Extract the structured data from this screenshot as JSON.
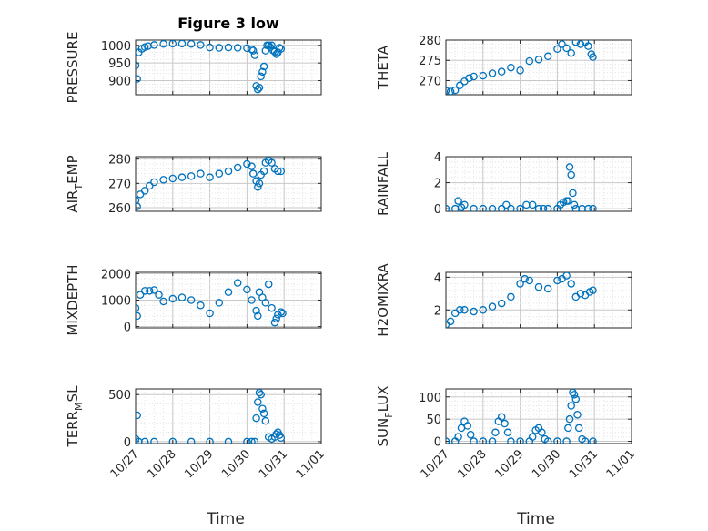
{
  "figure": {
    "title": "Figure 3 low"
  },
  "chart_data": [
    {
      "type": "scatter",
      "id": "pressure",
      "ylabel": "PRESSURE",
      "ylabel_sub": "",
      "ylim": [
        860,
        1015
      ],
      "yticks": [
        900,
        950,
        1000
      ],
      "xlabel": "",
      "xticks": [],
      "x": [
        "10/27 00:00",
        "10/27 01:00",
        "10/27 02:00",
        "10/27 04:00",
        "10/27 06:00",
        "10/27 08:00",
        "10/27 12:00",
        "10/27 18:00",
        "10/28 00:00",
        "10/28 06:00",
        "10/28 12:00",
        "10/28 18:00",
        "10/29 00:00",
        "10/29 06:00",
        "10/29 12:00",
        "10/29 18:00",
        "10/30 00:00",
        "10/30 03:00",
        "10/30 04:00",
        "10/30 05:00",
        "10/30 06:00",
        "10/30 07:00",
        "10/30 08:00",
        "10/30 09:00",
        "10/30 10:00",
        "10/30 11:00",
        "10/30 12:00",
        "10/30 13:00",
        "10/30 14:00",
        "10/30 15:00",
        "10/30 16:00",
        "10/30 17:00",
        "10/30 18:00",
        "10/30 19:00",
        "10/30 20:00",
        "10/30 21:00",
        "10/30 22:00"
      ],
      "y": [
        943,
        905,
        980,
        990,
        995,
        998,
        1001,
        1004,
        1005,
        1005,
        1004,
        1001,
        994,
        993,
        994,
        993,
        992,
        989,
        985,
        972,
        885,
        875,
        880,
        912,
        925,
        940,
        985,
        1000,
        1000,
        995,
        1000,
        985,
        982,
        975,
        980,
        993,
        990
      ]
    },
    {
      "type": "scatter",
      "id": "theta",
      "ylabel": "THETA",
      "ylabel_sub": "",
      "ylim": [
        266.5,
        280
      ],
      "yticks": [
        270,
        275,
        280
      ],
      "xlabel": "",
      "xticks": [],
      "x": [
        "10/27 00:00",
        "10/27 03:00",
        "10/27 06:00",
        "10/27 09:00",
        "10/27 12:00",
        "10/27 15:00",
        "10/27 18:00",
        "10/28 00:00",
        "10/28 06:00",
        "10/28 12:00",
        "10/28 18:00",
        "10/29 00:00",
        "10/29 06:00",
        "10/29 12:00",
        "10/29 18:00",
        "10/30 00:00",
        "10/30 03:00",
        "10/30 06:00",
        "10/30 09:00",
        "10/30 12:00",
        "10/30 15:00",
        "10/30 18:00",
        "10/30 20:00",
        "10/30 22:00",
        "10/30 23:00"
      ],
      "y": [
        267.5,
        267.3,
        267.6,
        268.8,
        269.8,
        270.6,
        271.0,
        271.2,
        271.8,
        272.2,
        273.2,
        272.5,
        274.8,
        275.2,
        276.0,
        277.8,
        279.0,
        278.0,
        276.8,
        279.5,
        279.0,
        279.5,
        278.5,
        276.5,
        275.8
      ]
    },
    {
      "type": "scatter",
      "id": "air_temp",
      "ylabel": "AIR",
      "ylabel_sub": "T",
      "ylabel_after": "EMP",
      "ylim": [
        258.5,
        281
      ],
      "yticks": [
        260,
        270,
        280
      ],
      "xlabel": "",
      "xticks": [],
      "x": [
        "10/27 00:00",
        "10/27 01:00",
        "10/27 03:00",
        "10/27 06:00",
        "10/27 09:00",
        "10/27 12:00",
        "10/27 18:00",
        "10/28 00:00",
        "10/28 06:00",
        "10/28 12:00",
        "10/28 18:00",
        "10/29 00:00",
        "10/29 06:00",
        "10/29 12:00",
        "10/29 18:00",
        "10/30 00:00",
        "10/30 03:00",
        "10/30 04:00",
        "10/30 06:00",
        "10/30 07:00",
        "10/30 08:00",
        "10/30 09:00",
        "10/30 11:00",
        "10/30 12:00",
        "10/30 14:00",
        "10/30 16:00",
        "10/30 18:00",
        "10/30 20:00",
        "10/30 22:00"
      ],
      "y": [
        263,
        260.5,
        265.5,
        267,
        269,
        270.5,
        271.5,
        272,
        272.5,
        273,
        274,
        272.5,
        274,
        275,
        276.5,
        278,
        277,
        274,
        271,
        268.5,
        270,
        273.5,
        275,
        278.5,
        279.5,
        278.5,
        276,
        275,
        275
      ]
    },
    {
      "type": "scatter",
      "id": "rainfall",
      "ylabel": "RAINFALL",
      "ylabel_sub": "",
      "ylim": [
        -0.2,
        4
      ],
      "yticks": [
        0,
        2,
        4
      ],
      "xlabel": "",
      "xticks": [],
      "x": [
        "10/27 00:00",
        "10/27 06:00",
        "10/27 08:00",
        "10/27 10:00",
        "10/27 12:00",
        "10/27 18:00",
        "10/28 00:00",
        "10/28 06:00",
        "10/28 12:00",
        "10/28 15:00",
        "10/28 18:00",
        "10/29 00:00",
        "10/29 04:00",
        "10/29 08:00",
        "10/29 12:00",
        "10/29 15:00",
        "10/29 18:00",
        "10/30 00:00",
        "10/30 02:00",
        "10/30 04:00",
        "10/30 06:00",
        "10/30 07:00",
        "10/30 08:00",
        "10/30 09:00",
        "10/30 10:00",
        "10/30 11:00",
        "10/30 12:00",
        "10/30 16:00",
        "10/30 20:00",
        "10/30 23:00"
      ],
      "y": [
        0,
        0,
        0.6,
        0.1,
        0.3,
        0,
        0,
        0,
        0,
        0.3,
        0,
        0,
        0.3,
        0.3,
        0,
        0,
        0,
        0,
        0.3,
        0.5,
        0.6,
        0.6,
        3.2,
        2.6,
        1.2,
        0.3,
        0,
        0,
        0,
        0
      ]
    },
    {
      "type": "scatter",
      "id": "mixdepth",
      "ylabel": "MIXDEPTH",
      "ylabel_sub": "",
      "ylim": [
        -50,
        2050
      ],
      "yticks": [
        0,
        1000,
        2000
      ],
      "xlabel": "",
      "xticks": [],
      "x": [
        "10/27 00:00",
        "10/27 01:00",
        "10/27 03:00",
        "10/27 06:00",
        "10/27 09:00",
        "10/27 12:00",
        "10/27 15:00",
        "10/27 18:00",
        "10/28 00:00",
        "10/28 06:00",
        "10/28 12:00",
        "10/28 18:00",
        "10/29 00:00",
        "10/29 06:00",
        "10/29 12:00",
        "10/29 18:00",
        "10/30 00:00",
        "10/30 03:00",
        "10/30 06:00",
        "10/30 07:00",
        "10/30 08:00",
        "10/30 10:00",
        "10/30 12:00",
        "10/30 14:00",
        "10/30 16:00",
        "10/30 18:00",
        "10/30 19:00",
        "10/30 20:00",
        "10/30 22:00",
        "10/30 23:00"
      ],
      "y": [
        700,
        400,
        1200,
        1350,
        1350,
        1380,
        1200,
        950,
        1050,
        1100,
        1000,
        800,
        500,
        900,
        1300,
        1650,
        1400,
        1000,
        600,
        400,
        1300,
        1100,
        900,
        1600,
        700,
        150,
        300,
        450,
        550,
        500
      ]
    },
    {
      "type": "scatter",
      "id": "h2omixra",
      "ylabel": "H2OMIXRA",
      "ylabel_sub": "",
      "ylim": [
        0.9,
        4.3
      ],
      "yticks": [
        2,
        4
      ],
      "xlabel": "",
      "xticks": [],
      "x": [
        "10/27 00:00",
        "10/27 03:00",
        "10/27 06:00",
        "10/27 09:00",
        "10/27 12:00",
        "10/27 18:00",
        "10/28 00:00",
        "10/28 06:00",
        "10/28 12:00",
        "10/28 18:00",
        "10/29 00:00",
        "10/29 03:00",
        "10/29 06:00",
        "10/29 12:00",
        "10/29 18:00",
        "10/30 00:00",
        "10/30 03:00",
        "10/30 06:00",
        "10/30 09:00",
        "10/30 12:00",
        "10/30 15:00",
        "10/30 18:00",
        "10/30 21:00",
        "10/30 23:00"
      ],
      "y": [
        1.1,
        1.3,
        1.8,
        2.0,
        2.0,
        1.9,
        2.0,
        2.2,
        2.4,
        2.8,
        3.6,
        3.9,
        3.8,
        3.4,
        3.3,
        3.8,
        3.9,
        4.1,
        3.6,
        2.8,
        3.0,
        2.9,
        3.1,
        3.2
      ]
    },
    {
      "type": "scatter",
      "id": "terr_msl",
      "ylabel": "TERR",
      "ylabel_sub": "M",
      "ylabel_after": "SL",
      "ylim": [
        -20,
        560
      ],
      "yticks": [
        0,
        500
      ],
      "xlabel": "Time",
      "xticks": [
        "10/27",
        "10/28",
        "10/29",
        "10/30",
        "10/31",
        "11/01"
      ],
      "x": [
        "10/27 00:00",
        "10/27 01:00",
        "10/27 02:00",
        "10/27 06:00",
        "10/27 12:00",
        "10/28 00:00",
        "10/28 12:00",
        "10/29 00:00",
        "10/29 12:00",
        "10/30 00:00",
        "10/30 03:00",
        "10/30 05:00",
        "10/30 06:00",
        "10/30 07:00",
        "10/30 08:00",
        "10/30 09:00",
        "10/30 10:00",
        "10/30 11:00",
        "10/30 12:00",
        "10/30 14:00",
        "10/30 16:00",
        "10/30 18:00",
        "10/30 19:00",
        "10/30 20:00",
        "10/30 21:00",
        "10/30 22:00"
      ],
      "y": [
        30,
        280,
        0,
        0,
        0,
        0,
        0,
        0,
        0,
        0,
        0,
        0,
        250,
        420,
        520,
        500,
        350,
        300,
        220,
        50,
        30,
        50,
        80,
        100,
        70,
        40
      ]
    },
    {
      "type": "scatter",
      "id": "sun_flux",
      "ylabel": "SUN",
      "ylabel_sub": "F",
      "ylabel_after": "LUX",
      "ylim": [
        -5,
        118
      ],
      "yticks": [
        0,
        50,
        100
      ],
      "xlabel": "Time",
      "xticks": [
        "10/27",
        "10/28",
        "10/29",
        "10/30",
        "10/31",
        "11/01"
      ],
      "x": [
        "10/27 00:00",
        "10/27 06:00",
        "10/27 08:00",
        "10/27 10:00",
        "10/27 12:00",
        "10/27 14:00",
        "10/27 16:00",
        "10/27 18:00",
        "10/28 00:00",
        "10/28 06:00",
        "10/28 08:00",
        "10/28 10:00",
        "10/28 12:00",
        "10/28 14:00",
        "10/28 16:00",
        "10/28 18:00",
        "10/29 00:00",
        "10/29 06:00",
        "10/29 08:00",
        "10/29 10:00",
        "10/29 12:00",
        "10/29 14:00",
        "10/29 16:00",
        "10/29 18:00",
        "10/30 00:00",
        "10/30 06:00",
        "10/30 07:00",
        "10/30 08:00",
        "10/30 09:00",
        "10/30 10:00",
        "10/30 11:00",
        "10/30 12:00",
        "10/30 13:00",
        "10/30 14:00",
        "10/30 16:00",
        "10/30 18:00",
        "10/30 23:00"
      ],
      "y": [
        0,
        0,
        10,
        30,
        45,
        35,
        15,
        0,
        0,
        0,
        20,
        45,
        55,
        40,
        20,
        0,
        0,
        0,
        10,
        25,
        30,
        20,
        5,
        0,
        0,
        0,
        30,
        50,
        80,
        110,
        105,
        95,
        60,
        30,
        5,
        0,
        0
      ]
    }
  ],
  "axis_config": {
    "xmin": "10/27",
    "xmax": "11/01",
    "marker": "open-circle",
    "grid": true,
    "grid_style": "dotted"
  },
  "colors": {
    "marker": "#0072BD",
    "axes": "#262626",
    "grid": "#d9d9d9"
  }
}
